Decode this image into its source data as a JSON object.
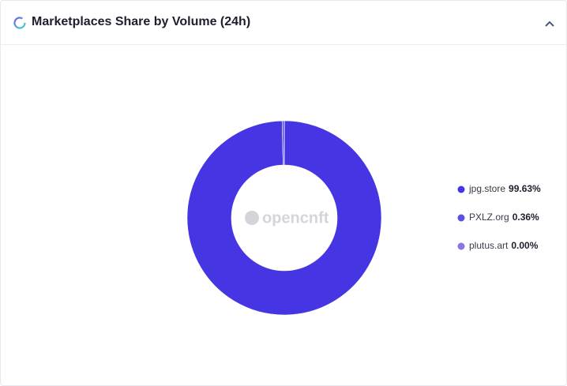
{
  "chart_data": {
    "type": "donut",
    "title": "Marketplaces Share by Volume (24h)",
    "watermark": "opencnft",
    "categories": [
      "jpg.store",
      "PXLZ.org",
      "plutus.art"
    ],
    "values": [
      99.63,
      0.36,
      0.0
    ],
    "value_labels": [
      "99.63%",
      "0.36%",
      "0.00%"
    ],
    "colors": [
      "#4535e2",
      "#5b4fdc",
      "#8b72e6"
    ],
    "legend": "right"
  }
}
